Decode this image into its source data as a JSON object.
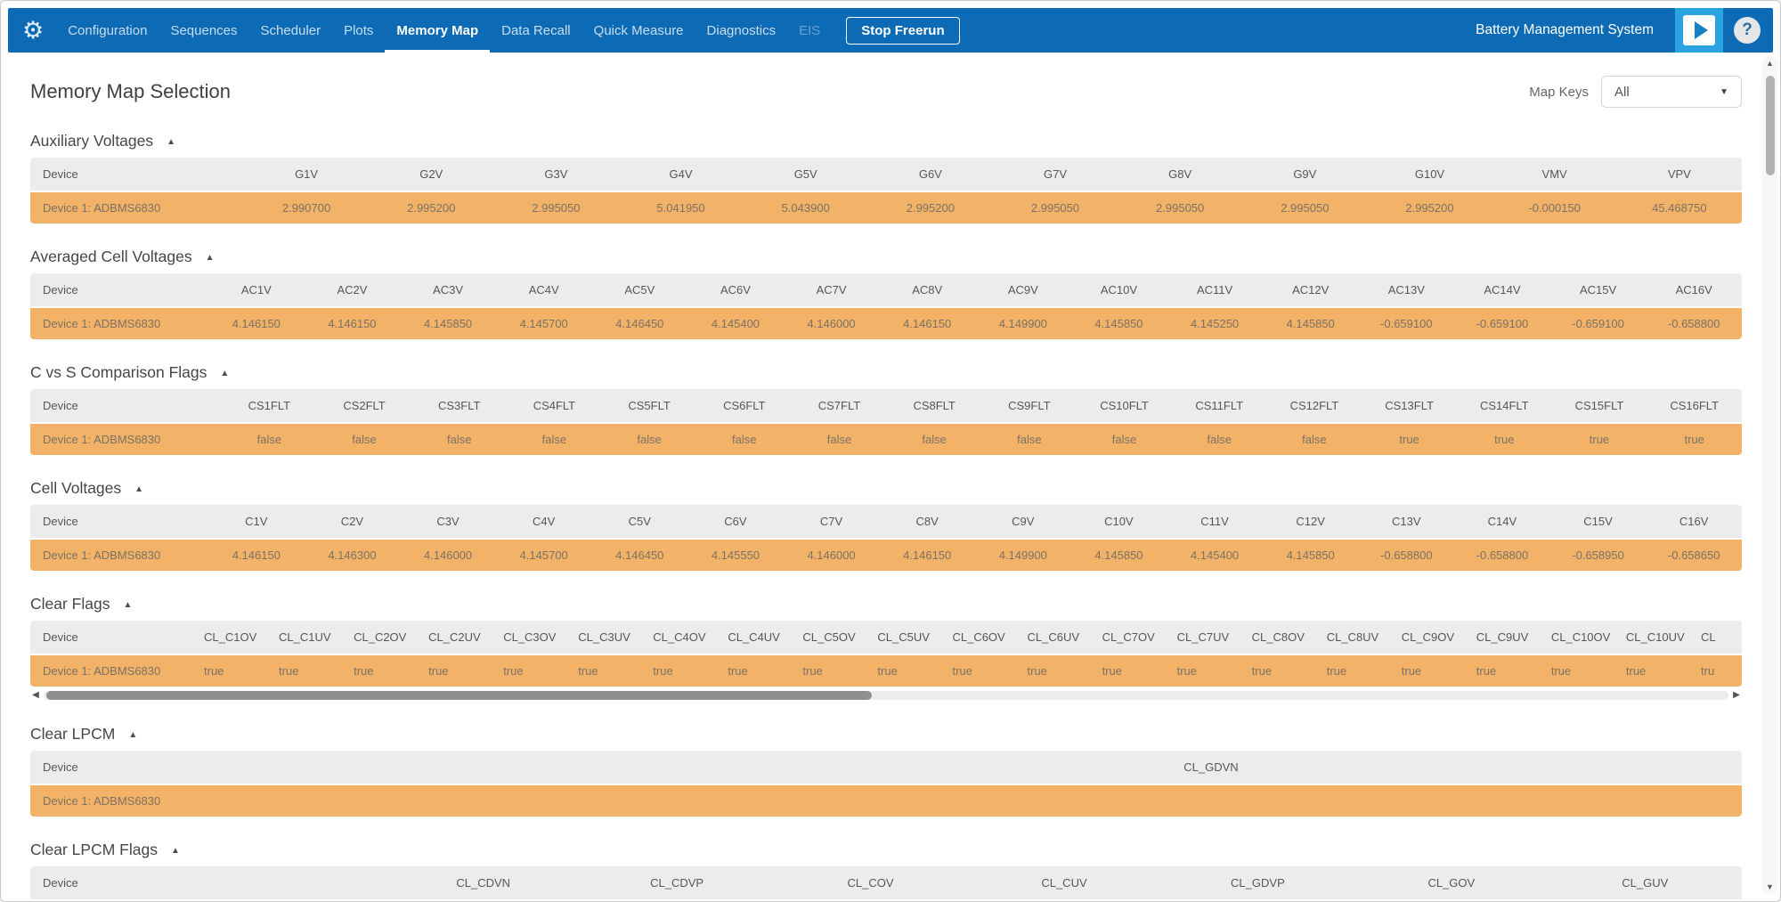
{
  "colors": {
    "nav_blue": "#0d6bb5",
    "accent_light_blue": "#2ba3de",
    "row_orange": "#f2b267",
    "header_gray": "#ececec"
  },
  "icons": {
    "gear": "⚙",
    "help": "?",
    "caret": "▼",
    "section_collapse": "▲",
    "scroll_up": "▲",
    "scroll_down": "▼",
    "scroll_left": "◀",
    "scroll_right": "▶"
  },
  "nav": {
    "items": [
      {
        "label": "Configuration",
        "state": "normal"
      },
      {
        "label": "Sequences",
        "state": "normal"
      },
      {
        "label": "Scheduler",
        "state": "normal"
      },
      {
        "label": "Plots",
        "state": "normal"
      },
      {
        "label": "Memory Map",
        "state": "active"
      },
      {
        "label": "Data Recall",
        "state": "normal"
      },
      {
        "label": "Quick Measure",
        "state": "normal"
      },
      {
        "label": "Diagnostics",
        "state": "normal"
      },
      {
        "label": "EIS",
        "state": "disabled"
      }
    ],
    "stop_button": "Stop Freerun",
    "brand": "Battery Management System"
  },
  "header": {
    "title": "Memory Map Selection",
    "map_keys_label": "Map Keys",
    "map_keys_value": "All"
  },
  "sections": [
    {
      "title": "Auxiliary Voltages",
      "device_header": "Device",
      "device": "Device 1: ADBMS6830",
      "columns": [
        "G1V",
        "G2V",
        "G3V",
        "G4V",
        "G5V",
        "G6V",
        "G7V",
        "G8V",
        "G9V",
        "G10V",
        "VMV",
        "VPV"
      ],
      "values": [
        "2.990700",
        "2.995200",
        "2.995050",
        "5.041950",
        "5.043900",
        "2.995200",
        "2.995050",
        "2.995050",
        "2.995050",
        "2.995200",
        "-0.000150",
        "45.468750"
      ]
    },
    {
      "title": "Averaged Cell Voltages",
      "device_header": "Device",
      "device": "Device 1: ADBMS6830",
      "columns": [
        "AC1V",
        "AC2V",
        "AC3V",
        "AC4V",
        "AC5V",
        "AC6V",
        "AC7V",
        "AC8V",
        "AC9V",
        "AC10V",
        "AC11V",
        "AC12V",
        "AC13V",
        "AC14V",
        "AC15V",
        "AC16V"
      ],
      "values": [
        "4.146150",
        "4.146150",
        "4.145850",
        "4.145700",
        "4.146450",
        "4.145400",
        "4.146000",
        "4.146150",
        "4.149900",
        "4.145850",
        "4.145250",
        "4.145850",
        "-0.659100",
        "-0.659100",
        "-0.659100",
        "-0.658800"
      ]
    },
    {
      "title": "C vs S Comparison Flags",
      "device_header": "Device",
      "device": "Device 1: ADBMS6830",
      "columns": [
        "CS1FLT",
        "CS2FLT",
        "CS3FLT",
        "CS4FLT",
        "CS5FLT",
        "CS6FLT",
        "CS7FLT",
        "CS8FLT",
        "CS9FLT",
        "CS10FLT",
        "CS11FLT",
        "CS12FLT",
        "CS13FLT",
        "CS14FLT",
        "CS15FLT",
        "CS16FLT"
      ],
      "values": [
        "false",
        "false",
        "false",
        "false",
        "false",
        "false",
        "false",
        "false",
        "false",
        "false",
        "false",
        "false",
        "true",
        "true",
        "true",
        "true"
      ]
    },
    {
      "title": "Cell Voltages",
      "device_header": "Device",
      "device": "Device 1: ADBMS6830",
      "columns": [
        "C1V",
        "C2V",
        "C3V",
        "C4V",
        "C5V",
        "C6V",
        "C7V",
        "C8V",
        "C9V",
        "C10V",
        "C11V",
        "C12V",
        "C13V",
        "C14V",
        "C15V",
        "C16V"
      ],
      "values": [
        "4.146150",
        "4.146300",
        "4.146000",
        "4.145700",
        "4.146450",
        "4.145550",
        "4.146000",
        "4.146150",
        "4.149900",
        "4.145850",
        "4.145400",
        "4.145850",
        "-0.658800",
        "-0.658800",
        "-0.658950",
        "-0.658650"
      ]
    },
    {
      "title": "Clear Flags",
      "device_header": "Device",
      "device": "Device 1: ADBMS6830",
      "columns": [
        "CL_C1OV",
        "CL_C1UV",
        "CL_C2OV",
        "CL_C2UV",
        "CL_C3OV",
        "CL_C3UV",
        "CL_C4OV",
        "CL_C4UV",
        "CL_C5OV",
        "CL_C5UV",
        "CL_C6OV",
        "CL_C6UV",
        "CL_C7OV",
        "CL_C7UV",
        "CL_C8OV",
        "CL_C8UV",
        "CL_C9OV",
        "CL_C9UV",
        "CL_C10OV",
        "CL_C10UV",
        "CL"
      ],
      "values": [
        "true",
        "true",
        "true",
        "true",
        "true",
        "true",
        "true",
        "true",
        "true",
        "true",
        "true",
        "true",
        "true",
        "true",
        "true",
        "true",
        "true",
        "true",
        "true",
        "true",
        "tru"
      ],
      "h_scrollbar": true
    },
    {
      "title": "Clear LPCM",
      "device_header": "Device",
      "device": "Device 1: ADBMS6830",
      "columns": [
        "CL_GDVN"
      ],
      "values": [
        ""
      ]
    },
    {
      "title": "Clear LPCM Flags",
      "device_header": "Device",
      "device": "",
      "columns": [
        "CL_CDVN",
        "CL_CDVP",
        "CL_COV",
        "CL_CUV",
        "CL_GDVP",
        "CL_GOV",
        "CL_GUV"
      ],
      "values": [
        "",
        "",
        "",
        "",
        "",
        "",
        ""
      ],
      "row_clipped": true
    }
  ]
}
